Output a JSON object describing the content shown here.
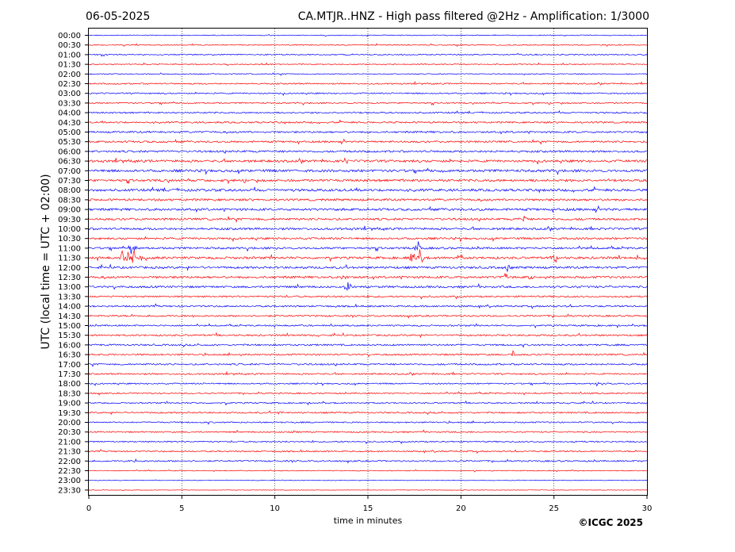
{
  "header": {
    "date": "06-05-2025",
    "title": "CA.MTJR..HNZ - High pass filtered @2Hz - Amplification: 1/3000"
  },
  "footer": {
    "copyright": "©ICGC 2025"
  },
  "chart_data": {
    "type": "line",
    "title": "CA.MTJR..HNZ - High pass filtered @2Hz - Amplification: 1/3000",
    "xlabel": "time in minutes",
    "ylabel": "UTC (local time = UTC + 02:00)",
    "xlim": [
      0,
      30
    ],
    "xticks": [
      0,
      5,
      10,
      15,
      20,
      25,
      30
    ],
    "vertical_gridlines": [
      5,
      10,
      15,
      20,
      25
    ],
    "grid": "vertical dotted",
    "colors": [
      "#ff0000",
      "#0000ff"
    ],
    "color_pattern": "alternating rows starting with blue at 00:00",
    "rows": [
      "00:00",
      "00:30",
      "01:00",
      "01:30",
      "02:00",
      "02:30",
      "03:00",
      "03:30",
      "04:00",
      "04:30",
      "05:00",
      "05:30",
      "06:00",
      "06:30",
      "07:00",
      "07:30",
      "08:00",
      "08:30",
      "09:00",
      "09:30",
      "10:00",
      "10:30",
      "11:00",
      "11:30",
      "12:00",
      "12:30",
      "13:00",
      "13:30",
      "14:00",
      "14:30",
      "15:00",
      "15:30",
      "16:00",
      "16:30",
      "17:00",
      "17:30",
      "18:00",
      "18:30",
      "19:00",
      "19:30",
      "20:00",
      "20:30",
      "21:00",
      "21:30",
      "22:00",
      "22:30",
      "23:00",
      "23:30"
    ],
    "row_noise": [
      0.5,
      0.6,
      0.7,
      0.6,
      0.6,
      0.8,
      0.8,
      0.8,
      0.9,
      1.0,
      1.1,
      1.1,
      1.2,
      1.4,
      1.5,
      1.4,
      1.5,
      1.3,
      1.4,
      1.3,
      1.3,
      1.2,
      1.2,
      1.4,
      1.3,
      1.3,
      1.2,
      1.0,
      1.0,
      1.0,
      0.9,
      1.0,
      1.0,
      1.0,
      1.0,
      0.9,
      0.8,
      0.8,
      0.8,
      0.9,
      0.8,
      0.8,
      0.8,
      0.8,
      0.9,
      0.5,
      0.3,
      0.3
    ],
    "events": [
      {
        "row": "11:00",
        "minute": 2.3,
        "amplitude": 14
      },
      {
        "row": "11:00",
        "minute": 17.7,
        "amplitude": 12
      },
      {
        "row": "11:30",
        "minute": 1.8,
        "amplitude": 8
      },
      {
        "row": "11:30",
        "minute": 2.1,
        "amplitude": 10
      },
      {
        "row": "11:30",
        "minute": 2.4,
        "amplitude": 12
      },
      {
        "row": "11:30",
        "minute": 2.7,
        "amplitude": 9
      },
      {
        "row": "11:30",
        "minute": 3.0,
        "amplitude": 8
      },
      {
        "row": "11:30",
        "minute": 17.4,
        "amplitude": 10
      },
      {
        "row": "11:30",
        "minute": 17.8,
        "amplitude": 12
      },
      {
        "row": "11:30",
        "minute": 20.0,
        "amplitude": 5
      },
      {
        "row": "11:30",
        "minute": 25.1,
        "amplitude": 8
      },
      {
        "row": "11:30",
        "minute": 29.5,
        "amplitude": 4
      },
      {
        "row": "12:00",
        "minute": 22.5,
        "amplitude": 5
      },
      {
        "row": "12:30",
        "minute": 13.7,
        "amplitude": 7
      },
      {
        "row": "12:30",
        "minute": 22.4,
        "amplitude": 8
      },
      {
        "row": "12:30",
        "minute": 23.7,
        "amplitude": 5
      },
      {
        "row": "13:00",
        "minute": 13.9,
        "amplitude": 7
      },
      {
        "row": "09:30",
        "minute": 23.4,
        "amplitude": 7
      },
      {
        "row": "06:30",
        "minute": 13.8,
        "amplitude": 4
      },
      {
        "row": "16:30",
        "minute": 22.8,
        "amplitude": 4
      },
      {
        "row": "18:00",
        "minute": 27.3,
        "amplitude": 3
      },
      {
        "row": "19:30",
        "minute": 10.3,
        "amplitude": 4
      },
      {
        "row": "22:00",
        "minute": 2.5,
        "amplitude": 3
      }
    ]
  }
}
